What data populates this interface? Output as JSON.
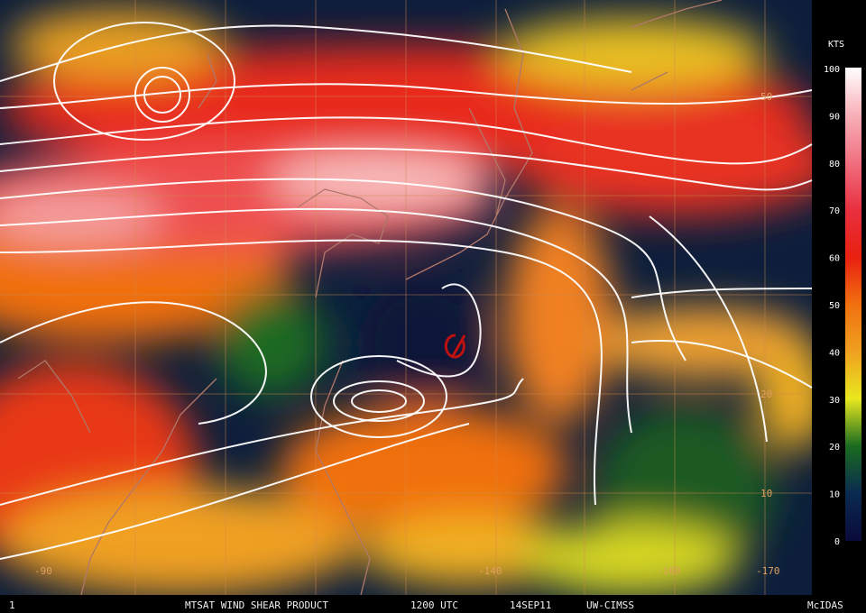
{
  "map": {
    "lat_labels": [
      "50",
      "20",
      "10"
    ],
    "lon_labels": [
      "-90",
      "-140",
      "-160",
      "-170"
    ]
  },
  "colorbar": {
    "title": "KTS",
    "ticks": [
      "0",
      "10",
      "20",
      "30",
      "40",
      "50",
      "60",
      "70",
      "80",
      "90",
      "100"
    ]
  },
  "footer": {
    "frame": "1",
    "product": "MTSAT WIND SHEAR PRODUCT",
    "time": "1200 UTC",
    "date": "14SEP11",
    "source": "UW-CIMSS",
    "software": "McIDAS"
  }
}
